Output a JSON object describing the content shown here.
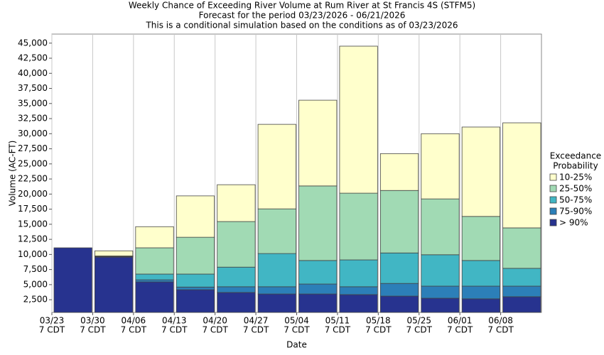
{
  "chart_data": {
    "type": "stacked_bar",
    "title_lines": [
      "Weekly Chance of Exceeding River Volume at Rum River at St Francis 4S (STFM5)",
      "Forecast for the period 03/23/2026 - 06/21/2026",
      "This is a conditional simulation based on the conditions as of 03/23/2026"
    ],
    "x_label": "Date",
    "y_label": "Volume (AC-FT)",
    "legend_title_lines": [
      "Exceedance",
      "Probability"
    ],
    "categories": [
      [
        "03/23",
        "7 CDT"
      ],
      [
        "03/30",
        "7 CDT"
      ],
      [
        "04/06",
        "7 CDT"
      ],
      [
        "04/13",
        "7 CDT"
      ],
      [
        "04/20",
        "7 CDT"
      ],
      [
        "04/27",
        "7 CDT"
      ],
      [
        "05/04",
        "7 CDT"
      ],
      [
        "05/11",
        "7 CDT"
      ],
      [
        "05/18",
        "7 CDT"
      ],
      [
        "05/25",
        "7 CDT"
      ],
      [
        "06/01",
        "7 CDT"
      ],
      [
        "06/08",
        "7 CDT"
      ]
    ],
    "series": [
      {
        "name": "> 90%",
        "color": "#27338f",
        "values": [
          11100,
          9550,
          5450,
          4150,
          3700,
          3450,
          3450,
          3350,
          3100,
          2750,
          2650,
          3000
        ]
      },
      {
        "name": "75-90%",
        "color": "#2c7fb8",
        "values": [
          0,
          100,
          350,
          450,
          950,
          1200,
          1650,
          1300,
          2100,
          2000,
          2100,
          1750
        ]
      },
      {
        "name": "50-75%",
        "color": "#41b6c4",
        "values": [
          0,
          50,
          950,
          2150,
          3250,
          5500,
          3900,
          4450,
          5050,
          5200,
          4250,
          2950
        ]
      },
      {
        "name": "25-50%",
        "color": "#a1dab4",
        "values": [
          0,
          50,
          4350,
          6100,
          7550,
          7400,
          12350,
          11050,
          10350,
          9250,
          7300,
          6700
        ]
      },
      {
        "name": "10-25%",
        "color": "#ffffcc",
        "values": [
          0,
          850,
          3500,
          6850,
          6100,
          14000,
          14200,
          24350,
          6100,
          10800,
          14800,
          17400
        ]
      }
    ],
    "ylim": [
      400,
      46500
    ],
    "yticks": [
      {
        "value": 2500,
        "label": "2,500"
      },
      {
        "value": 5000,
        "label": "5,000"
      },
      {
        "value": 7500,
        "label": "7,500"
      },
      {
        "value": 10000,
        "label": "10,000"
      },
      {
        "value": 12500,
        "label": "12,500"
      },
      {
        "value": 15000,
        "label": "15,000"
      },
      {
        "value": 17500,
        "label": "17,500"
      },
      {
        "value": 20000,
        "label": "20,000"
      },
      {
        "value": 22500,
        "label": "22,500"
      },
      {
        "value": 25000,
        "label": "25,000"
      },
      {
        "value": 27500,
        "label": "27,500"
      },
      {
        "value": 30000,
        "label": "30,000"
      },
      {
        "value": 32500,
        "label": "32,500"
      },
      {
        "value": 35000,
        "label": "35,000"
      },
      {
        "value": 37500,
        "label": "37,500"
      },
      {
        "value": 40000,
        "label": "40,000"
      },
      {
        "value": 42500,
        "label": "42,500"
      },
      {
        "value": 45000,
        "label": "45,000"
      }
    ]
  }
}
